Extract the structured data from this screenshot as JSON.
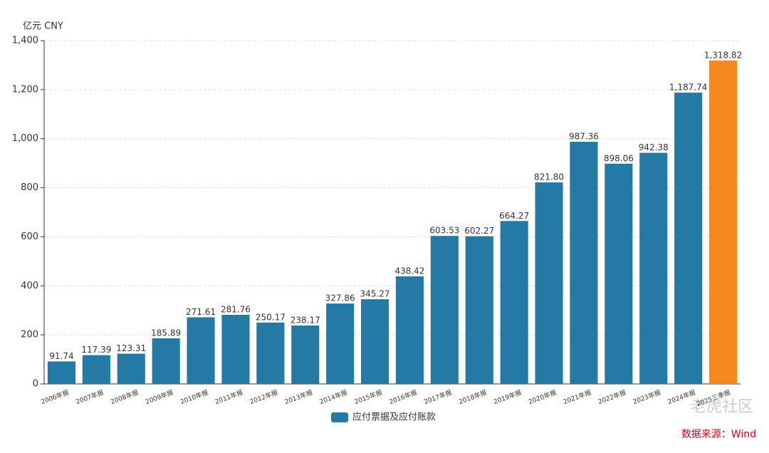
{
  "chart_data": {
    "type": "bar",
    "unit_label": "亿元  CNY",
    "categories": [
      "2006年报",
      "2007年报",
      "2008年报",
      "2009年报",
      "2010年报",
      "2011年报",
      "2012年报",
      "2013年报",
      "2014年报",
      "2015年报",
      "2016年报",
      "2017年报",
      "2018年报",
      "2019年报",
      "2020年报",
      "2021年报",
      "2022年报",
      "2023年报",
      "2024年报",
      "2025三季报"
    ],
    "series": [
      {
        "name": "应付票据及应付账款",
        "color": "#2479a5",
        "values": [
          91.74,
          117.39,
          123.31,
          185.89,
          271.61,
          281.76,
          250.17,
          238.17,
          327.86,
          345.27,
          438.42,
          603.53,
          602.27,
          664.27,
          821.8,
          987.36,
          898.06,
          942.38,
          1187.74,
          1318.82
        ],
        "value_labels": [
          "91.74",
          "117.39",
          "123.31",
          "185.89",
          "271.61",
          "281.76",
          "250.17",
          "238.17",
          "327.86",
          "345.27",
          "438.42",
          "603.53",
          "602.27",
          "664.27",
          "821.80",
          "987.36",
          "898.06",
          "942.38",
          "1,187.74",
          "1,318.82"
        ],
        "colors": [
          "#2479a5",
          "#2479a5",
          "#2479a5",
          "#2479a5",
          "#2479a5",
          "#2479a5",
          "#2479a5",
          "#2479a5",
          "#2479a5",
          "#2479a5",
          "#2479a5",
          "#2479a5",
          "#2479a5",
          "#2479a5",
          "#2479a5",
          "#2479a5",
          "#2479a5",
          "#2479a5",
          "#2479a5",
          "#f5891d"
        ]
      }
    ],
    "ylim": [
      0,
      1400
    ],
    "yticks": [
      0,
      200,
      400,
      600,
      800,
      {
        "value": 1000,
        "label": "1,000"
      },
      {
        "value": 1200,
        "label": "1,200"
      },
      {
        "value": 1400,
        "label": "1,400"
      }
    ],
    "grid": true,
    "source": "数据来源：Wind",
    "watermark": "老虎社区"
  }
}
